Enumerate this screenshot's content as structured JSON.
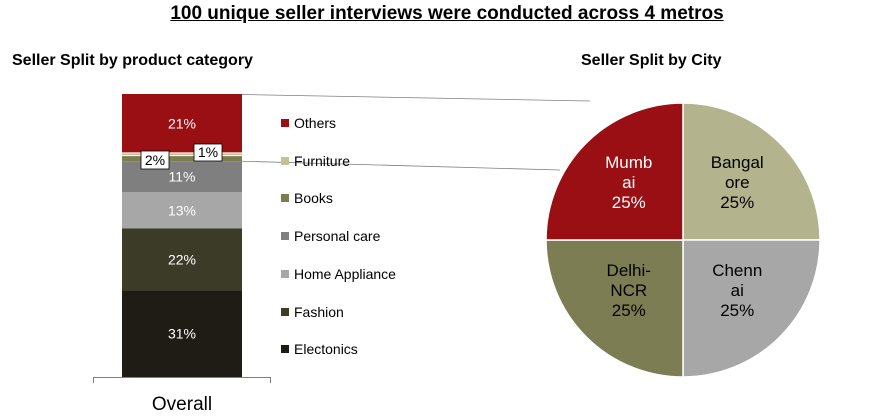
{
  "title": "100 unique seller interviews were conducted across 4 metros",
  "colors": {
    "Electonics": "#1e1c14",
    "Fashion": "#3b3b28",
    "Home Appliance": "#a7a7a7",
    "Personal care": "#7f7f7f",
    "Books": "#7d7d53",
    "Furniture": "#c2c296",
    "Others": "#990f14",
    "Mumbai": "#990f14",
    "Bangalore": "#b3b38e",
    "Chennai": "#a7a7a7",
    "Delhi-NCR": "#7d7d53"
  },
  "chart_data": [
    {
      "type": "bar",
      "stacked": true,
      "title": "Seller Split by product category",
      "categories": [
        "Overall"
      ],
      "series": [
        {
          "name": "Electonics",
          "values": [
            31
          ],
          "label": "31%"
        },
        {
          "name": "Fashion",
          "values": [
            22
          ],
          "label": "22%"
        },
        {
          "name": "Home Appliance",
          "values": [
            13
          ],
          "label": "13%"
        },
        {
          "name": "Personal care",
          "values": [
            11
          ],
          "label": "11%"
        },
        {
          "name": "Books",
          "values": [
            2
          ],
          "label": "2%"
        },
        {
          "name": "Furniture",
          "values": [
            1
          ],
          "label": "1%"
        },
        {
          "name": "Others",
          "values": [
            21
          ],
          "label": "21%"
        }
      ],
      "legend_order": [
        "Others",
        "Furniture",
        "Books",
        "Personal care",
        "Home Appliance",
        "Fashion",
        "Electonics"
      ],
      "legend": "right",
      "ylim": [
        0,
        101
      ]
    },
    {
      "type": "pie",
      "title": "Seller Split by City",
      "slices": [
        {
          "name": "Bangalore",
          "value": 25,
          "label_lines": [
            "Bangal",
            "ore",
            "25%"
          ]
        },
        {
          "name": "Chennai",
          "value": 25,
          "label_lines": [
            "Chenn",
            "ai",
            "25%"
          ]
        },
        {
          "name": "Delhi-NCR",
          "value": 25,
          "label_lines": [
            "Delhi-",
            "NCR",
            "25%"
          ]
        },
        {
          "name": "Mumbai",
          "value": 25,
          "label_lines": [
            "Mumb",
            "ai",
            "25%"
          ]
        }
      ]
    }
  ]
}
